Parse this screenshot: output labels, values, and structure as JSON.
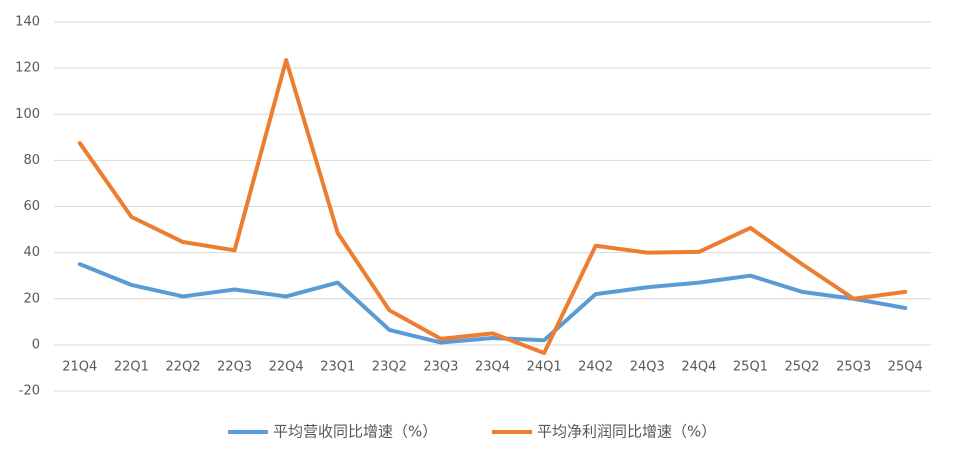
{
  "chart_data": {
    "type": "line",
    "categories": [
      "21Q4",
      "22Q1",
      "22Q2",
      "22Q3",
      "22Q4",
      "23Q1",
      "23Q2",
      "23Q3",
      "23Q4",
      "24Q1",
      "24Q2",
      "24Q3",
      "24Q4",
      "25Q1",
      "25Q2",
      "25Q3",
      "25Q4"
    ],
    "series": [
      {
        "name": "平均营收同比增速（%）",
        "color": "#5b9bd5",
        "values": [
          35,
          26,
          21,
          24,
          21,
          27,
          6.5,
          1,
          3,
          2,
          22,
          25,
          27,
          30,
          23,
          20,
          16
        ]
      },
      {
        "name": "平均净利润同比增速（%）",
        "color": "#ed7d31",
        "values": [
          87.5,
          55.5,
          44.6,
          41,
          123.5,
          48.5,
          15,
          2.6,
          5,
          -3.5,
          43,
          40,
          40.3,
          50.7,
          35,
          20,
          23
        ]
      }
    ],
    "ylim": [
      -20,
      140
    ],
    "yticks": [
      -20,
      0,
      20,
      40,
      60,
      80,
      100,
      120,
      140
    ],
    "grid": true,
    "legend": "bottom"
  }
}
